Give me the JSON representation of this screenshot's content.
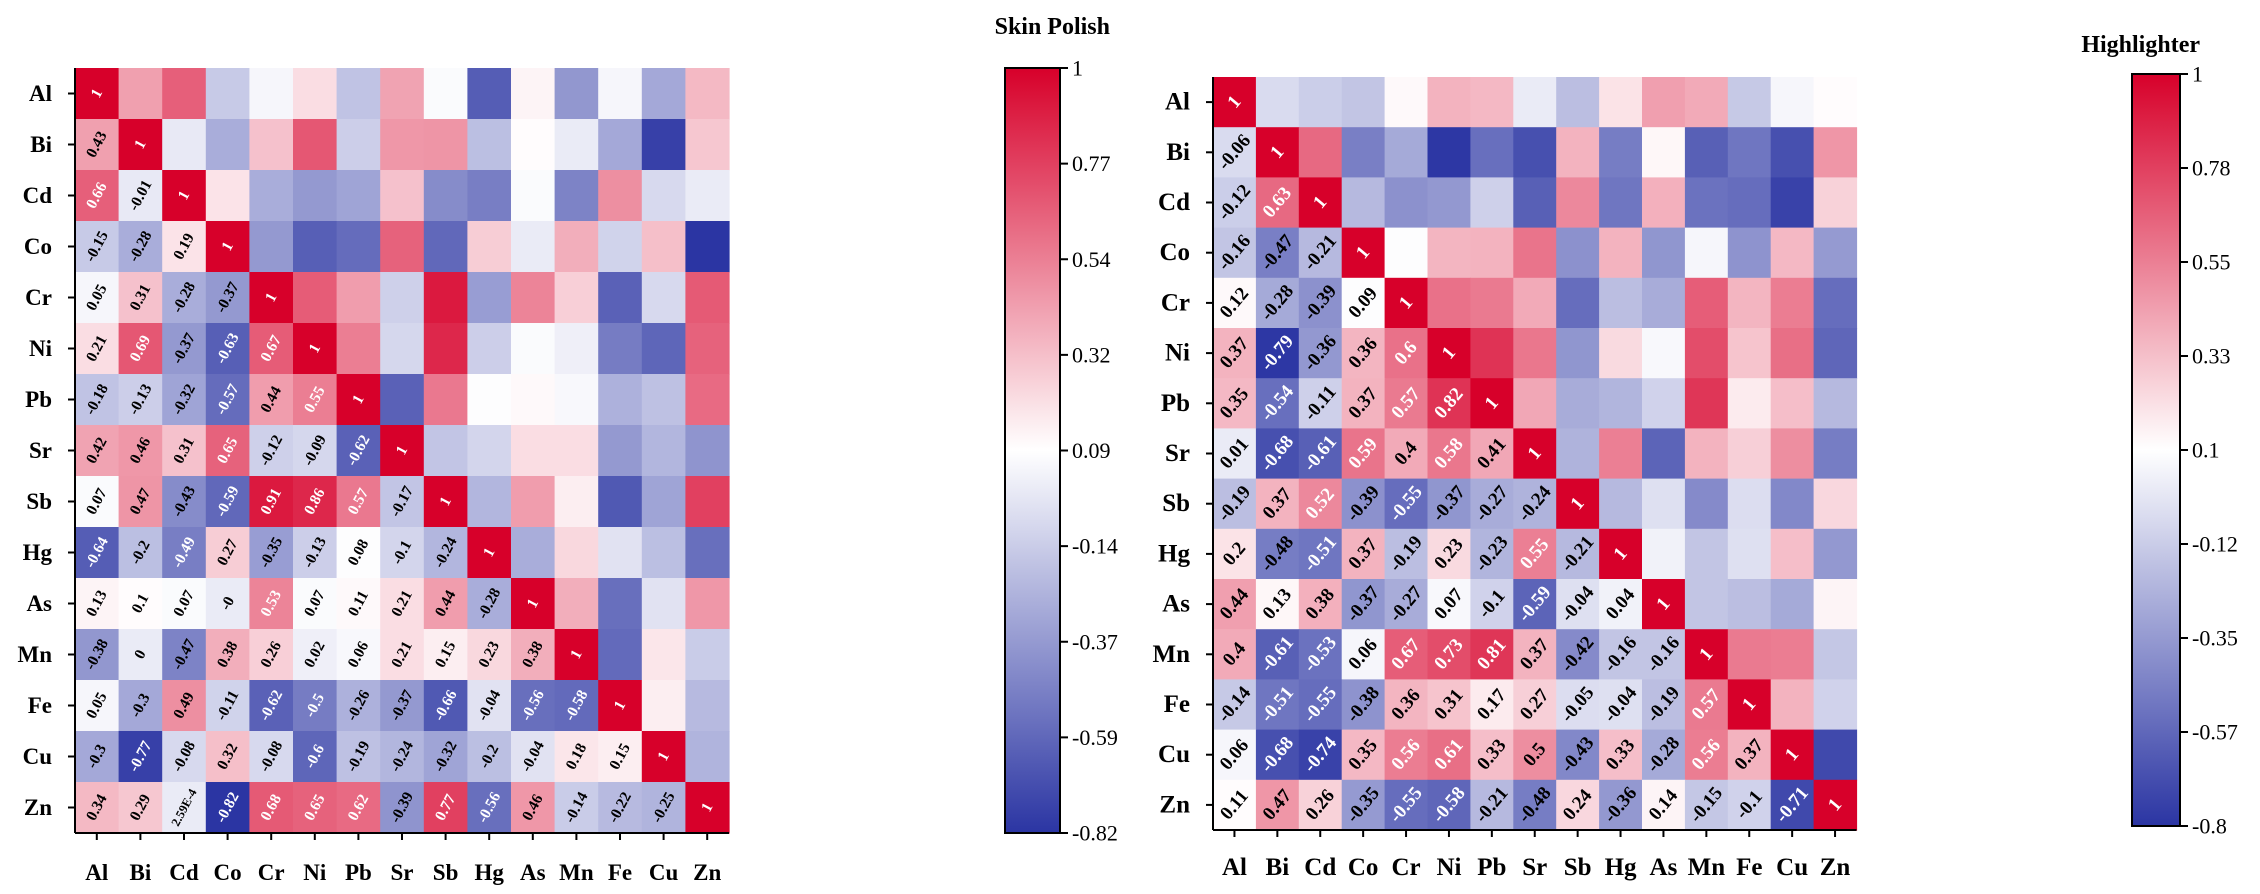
{
  "chart_data": [
    {
      "type": "heatmap",
      "title": "Skin Polish",
      "categories": [
        "Al",
        "Bi",
        "Cd",
        "Co",
        "Cr",
        "Ni",
        "Pb",
        "Sr",
        "Sb",
        "Hg",
        "As",
        "Mn",
        "Fe",
        "Cu",
        "Zn"
      ],
      "lower_labels": [
        [
          "1"
        ],
        [
          "0.43",
          "1"
        ],
        [
          "0.66",
          "-0.01",
          "1"
        ],
        [
          "-0.15",
          "-0.28",
          "0.19",
          "1"
        ],
        [
          "0.05",
          "0.31",
          "-0.28",
          "-0.37",
          "1"
        ],
        [
          "0.21",
          "0.69",
          "-0.37",
          "-0.63",
          "0.67",
          "1"
        ],
        [
          "-0.18",
          "-0.13",
          "-0.32",
          "-0.57",
          "0.44",
          "0.55",
          "1"
        ],
        [
          "0.42",
          "0.46",
          "0.31",
          "0.65",
          "-0.12",
          "-0.09",
          "-0.62",
          "1"
        ],
        [
          "0.07",
          "0.47",
          "-0.43",
          "-0.59",
          "0.91",
          "0.86",
          "0.57",
          "-0.17",
          "1"
        ],
        [
          "-0.64",
          "-0.2",
          "-0.49",
          "0.27",
          "-0.35",
          "-0.13",
          "0.08",
          "-0.1",
          "-0.24",
          "1"
        ],
        [
          "0.13",
          "0.1",
          "0.07",
          "-0",
          "0.53",
          "0.07",
          "0.11",
          "0.21",
          "0.44",
          "-0.28",
          "1"
        ],
        [
          "-0.38",
          "0",
          "-0.47",
          "0.38",
          "0.26",
          "0.02",
          "0.06",
          "0.21",
          "0.15",
          "0.23",
          "0.38",
          "1"
        ],
        [
          "0.05",
          "-0.3",
          "0.49",
          "-0.11",
          "-0.62",
          "-0.5",
          "-0.26",
          "-0.37",
          "-0.66",
          "-0.04",
          "-0.56",
          "-0.58",
          "1"
        ],
        [
          "-0.3",
          "-0.77",
          "-0.08",
          "0.32",
          "-0.08",
          "-0.6",
          "-0.19",
          "-0.24",
          "-0.32",
          "-0.2",
          "-0.04",
          "0.18",
          "0.15",
          "1"
        ],
        [
          "0.34",
          "0.29",
          "2.59E-4",
          "-0.82",
          "0.68",
          "0.65",
          "0.62",
          "-0.39",
          "0.77",
          "-0.56",
          "0.46",
          "-0.14",
          "-0.22",
          "-0.25",
          "1"
        ]
      ],
      "upper_values": [
        [
          0.43,
          0.66,
          -0.15,
          0.05,
          0.21,
          -0.18,
          0.42,
          0.07,
          -0.64,
          0.13,
          -0.38,
          0.05,
          -0.3,
          0.34
        ],
        [
          -0.01,
          -0.28,
          0.31,
          0.69,
          -0.13,
          0.46,
          0.47,
          -0.2,
          0.1,
          0,
          -0.3,
          -0.77,
          0.29
        ],
        [
          0.19,
          -0.28,
          -0.37,
          -0.32,
          0.31,
          -0.43,
          -0.49,
          0.07,
          -0.47,
          0.49,
          -0.08,
          0
        ],
        [
          -0.37,
          -0.63,
          -0.57,
          0.65,
          -0.59,
          0.27,
          0,
          0.38,
          -0.11,
          0.32,
          -0.82
        ],
        [
          0.67,
          0.44,
          -0.12,
          0.91,
          -0.35,
          0.53,
          0.26,
          -0.62,
          -0.08,
          0.68
        ],
        [
          0.55,
          -0.09,
          0.86,
          -0.13,
          0.07,
          0.02,
          -0.5,
          -0.6,
          0.65
        ],
        [
          -0.62,
          0.57,
          0.08,
          0.11,
          0.06,
          -0.26,
          -0.19,
          0.62
        ],
        [
          -0.17,
          -0.1,
          0.21,
          0.21,
          -0.37,
          -0.24,
          -0.39
        ],
        [
          -0.24,
          0.44,
          0.15,
          -0.66,
          -0.32,
          0.77
        ],
        [
          -0.28,
          0.23,
          -0.04,
          -0.2,
          -0.56
        ],
        [
          0.38,
          -0.56,
          -0.04,
          0.46
        ],
        [
          -0.58,
          0.18,
          -0.14
        ],
        [
          0.15,
          -0.22
        ],
        [
          -0.25
        ]
      ],
      "colorbar_ticks": [
        "1",
        "0.77",
        "0.54",
        "0.32",
        "0.09",
        "-0.14",
        "-0.37",
        "-0.59",
        "-0.82"
      ],
      "vmin": -0.82,
      "vmax": 1,
      "colors": {
        "high": "#d7002a",
        "mid": "#ffffff",
        "low": "#2b35a3"
      }
    },
    {
      "type": "heatmap",
      "title": "Highlighter",
      "categories": [
        "Al",
        "Bi",
        "Cd",
        "Co",
        "Cr",
        "Ni",
        "Pb",
        "Sr",
        "Sb",
        "Hg",
        "As",
        "Mn",
        "Fe",
        "Cu",
        "Zn"
      ],
      "lower_labels": [
        [
          "1"
        ],
        [
          "-0.06",
          "1"
        ],
        [
          "-0.12",
          "0.63",
          "1"
        ],
        [
          "-0.16",
          "-0.47",
          "-0.21",
          "1"
        ],
        [
          "0.12",
          "-0.28",
          "-0.39",
          "0.09",
          "1"
        ],
        [
          "0.37",
          "-0.79",
          "-0.36",
          "0.36",
          "0.6",
          "1"
        ],
        [
          "0.35",
          "-0.54",
          "-0.11",
          "0.37",
          "0.57",
          "0.82",
          "1"
        ],
        [
          "0.01",
          "-0.68",
          "-0.61",
          "0.59",
          "0.4",
          "0.58",
          "0.41",
          "1"
        ],
        [
          "-0.19",
          "0.37",
          "0.52",
          "-0.39",
          "-0.55",
          "-0.37",
          "-0.27",
          "-0.24",
          "1"
        ],
        [
          "0.2",
          "-0.48",
          "-0.51",
          "0.37",
          "-0.19",
          "0.23",
          "-0.23",
          "0.55",
          "-0.21",
          "1"
        ],
        [
          "0.44",
          "0.13",
          "0.38",
          "-0.37",
          "-0.27",
          "0.07",
          "-0.1",
          "-0.59",
          "-0.04",
          "0.04",
          "1"
        ],
        [
          "0.4",
          "-0.61",
          "-0.53",
          "0.06",
          "0.67",
          "0.73",
          "0.81",
          "0.37",
          "-0.42",
          "-0.16",
          "-0.16",
          "1"
        ],
        [
          "-0.14",
          "-0.51",
          "-0.55",
          "-0.38",
          "0.36",
          "0.31",
          "0.17",
          "0.27",
          "-0.05",
          "-0.04",
          "-0.19",
          "0.57",
          "1"
        ],
        [
          "0.06",
          "-0.68",
          "-0.74",
          "0.35",
          "0.56",
          "0.61",
          "0.33",
          "0.5",
          "-0.43",
          "0.33",
          "-0.28",
          "0.56",
          "0.37",
          "1"
        ],
        [
          "0.11",
          "0.47",
          "0.26",
          "-0.35",
          "-0.55",
          "-0.58",
          "-0.21",
          "-0.48",
          "0.24",
          "-0.36",
          "0.14",
          "-0.15",
          "-0.1",
          "-0.71",
          "1"
        ]
      ],
      "upper_values": [
        [
          -0.06,
          -0.12,
          -0.16,
          0.12,
          0.37,
          0.35,
          0.01,
          -0.19,
          0.2,
          0.44,
          0.4,
          -0.14,
          0.06,
          0.11
        ],
        [
          0.63,
          -0.47,
          -0.28,
          -0.79,
          -0.54,
          -0.68,
          0.37,
          -0.48,
          0.13,
          -0.61,
          -0.51,
          -0.68,
          0.47
        ],
        [
          -0.21,
          -0.39,
          -0.36,
          -0.11,
          -0.61,
          0.52,
          -0.51,
          0.38,
          -0.53,
          -0.55,
          -0.74,
          0.26
        ],
        [
          0.09,
          0.36,
          0.37,
          0.59,
          -0.39,
          0.37,
          -0.37,
          0.06,
          -0.38,
          0.35,
          -0.35
        ],
        [
          0.6,
          0.57,
          0.4,
          -0.55,
          -0.19,
          -0.27,
          0.67,
          0.36,
          0.56,
          -0.55
        ],
        [
          0.82,
          0.58,
          -0.37,
          0.23,
          0.07,
          0.73,
          0.31,
          0.61,
          -0.58
        ],
        [
          0.41,
          -0.27,
          -0.23,
          -0.1,
          0.81,
          0.17,
          0.33,
          -0.21
        ],
        [
          -0.24,
          0.55,
          -0.59,
          0.37,
          0.27,
          0.5,
          -0.48
        ],
        [
          -0.21,
          -0.04,
          -0.42,
          -0.05,
          -0.43,
          0.24
        ],
        [
          0.04,
          -0.16,
          -0.04,
          0.33,
          -0.36
        ],
        [
          -0.16,
          -0.19,
          -0.28,
          0.14
        ],
        [
          0.57,
          0.56,
          -0.15
        ],
        [
          0.37,
          -0.1
        ],
        [
          -0.71
        ]
      ],
      "colorbar_ticks": [
        "1",
        "0.78",
        "0.55",
        "0.33",
        "0.1",
        "-0.12",
        "-0.35",
        "-0.57",
        "-0.8"
      ],
      "vmin": -0.8,
      "vmax": 1,
      "colors": {
        "high": "#d7002a",
        "mid": "#ffffff",
        "low": "#2b35a3"
      }
    }
  ]
}
